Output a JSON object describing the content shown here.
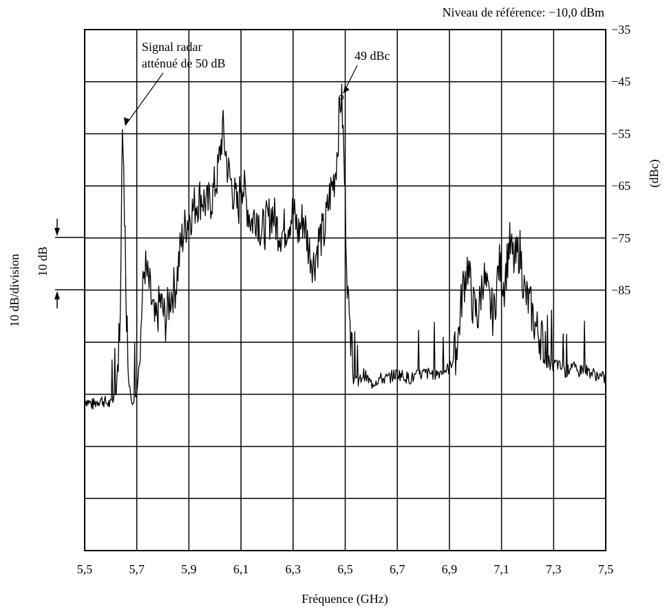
{
  "chart_data": {
    "type": "line",
    "reference_level": "Niveau de référence: −10,0 dBm",
    "xlabel": "Fréquence (GHz)",
    "ylabel": "(dBc)",
    "left_label": "10 dB/division",
    "scale_marker_label": "10 dB",
    "xlim": [
      5.5,
      7.5
    ],
    "ylim": [
      -35,
      -135
    ],
    "x_ticks": [
      "5,5",
      "5,7",
      "5,9",
      "6,1",
      "6,3",
      "6,5",
      "6,7",
      "6,9",
      "7,1",
      "7,3",
      "7,5"
    ],
    "y_ticks": [
      {
        "value": -35,
        "label": "−35"
      },
      {
        "value": -45,
        "label": "−45"
      },
      {
        "value": -55,
        "label": "−55"
      },
      {
        "value": -65,
        "label": "−65"
      },
      {
        "value": -75,
        "label": "−75"
      },
      {
        "value": -85,
        "label": "−85"
      }
    ],
    "grid": true,
    "annotations": [
      {
        "lines": [
          "Signal radar",
          "atténué de 50 dB"
        ],
        "target": [
          5.645,
          -55
        ]
      },
      {
        "lines": [
          "49 dBc"
        ],
        "target": [
          6.485,
          -48
        ]
      }
    ],
    "series": [
      {
        "x": [
          5.5,
          5.53,
          5.56,
          5.6,
          5.62,
          5.635,
          5.645,
          5.655,
          5.665,
          5.68,
          5.7,
          5.71,
          5.72,
          5.73,
          5.75,
          5.77,
          5.79,
          5.81,
          5.83,
          5.85,
          5.87,
          5.89,
          5.91,
          5.93,
          5.95,
          5.97,
          5.99,
          6.01,
          6.03,
          6.04,
          6.05,
          6.07,
          6.09,
          6.1,
          6.12,
          6.14,
          6.16,
          6.18,
          6.2,
          6.22,
          6.24,
          6.26,
          6.28,
          6.3,
          6.32,
          6.34,
          6.36,
          6.38,
          6.4,
          6.42,
          6.44,
          6.46,
          6.47,
          6.48,
          6.485,
          6.49,
          6.5,
          6.51,
          6.52,
          6.53,
          6.55,
          6.57,
          6.6,
          6.63,
          6.66,
          6.7,
          6.75,
          6.8,
          6.85,
          6.9,
          6.93,
          6.95,
          6.97,
          6.99,
          7.01,
          7.03,
          7.05,
          7.07,
          7.09,
          7.11,
          7.13,
          7.15,
          7.17,
          7.19,
          7.21,
          7.23,
          7.25,
          7.27,
          7.29,
          7.31,
          7.33,
          7.35,
          7.37,
          7.39,
          7.41,
          7.45,
          7.5
        ],
        "values": [
          -106,
          -107,
          -106,
          -107,
          -105,
          -92,
          -55,
          -75,
          -100,
          -106,
          -105,
          -97,
          -88,
          -80,
          -85,
          -92,
          -87,
          -91,
          -86,
          -84,
          -76,
          -72,
          -70,
          -68,
          -67,
          -69,
          -67,
          -63,
          -54,
          -58,
          -62,
          -66,
          -70,
          -63,
          -68,
          -72,
          -70,
          -74,
          -72,
          -70,
          -73,
          -74,
          -72,
          -70,
          -74,
          -71,
          -77,
          -80,
          -75,
          -74,
          -67,
          -63,
          -58,
          -49,
          -48,
          -52,
          -68,
          -86,
          -95,
          -102,
          -103,
          -101,
          -103,
          -102,
          -102,
          -101,
          -102,
          -101,
          -101,
          -100,
          -96,
          -85,
          -80,
          -88,
          -90,
          -82,
          -87,
          -90,
          -80,
          -84,
          -76,
          -80,
          -77,
          -86,
          -88,
          -92,
          -94,
          -96,
          -100,
          -99,
          -100,
          -101,
          -99,
          -101,
          -100,
          -101,
          -102
        ]
      }
    ]
  }
}
